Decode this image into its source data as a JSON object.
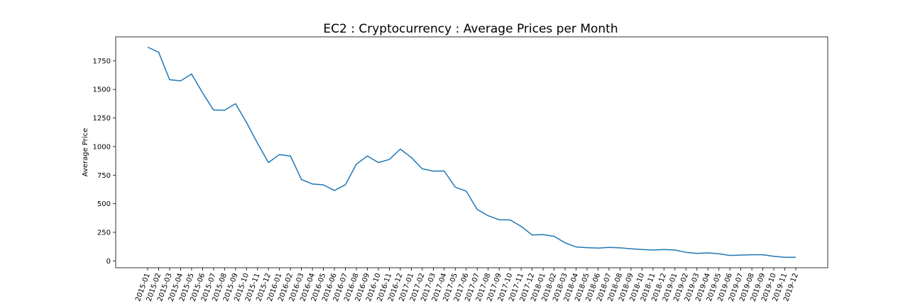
{
  "chart_data": {
    "type": "line",
    "title": "EC2 : Cryptocurrency : Average Prices per Month",
    "xlabel": "",
    "ylabel": "Average Price",
    "ylim": [
      -60,
      1960
    ],
    "yticks": [
      0,
      250,
      500,
      750,
      1000,
      1250,
      1500,
      1750
    ],
    "grid": false,
    "line_color": "#1f77b4",
    "categories": [
      "2015-01",
      "2015-02",
      "2015-03",
      "2015-04",
      "2015-05",
      "2015-06",
      "2015-07",
      "2015-08",
      "2015-09",
      "2015-10",
      "2015-11",
      "2015-12",
      "2016-01",
      "2016-02",
      "2016-03",
      "2016-04",
      "2016-05",
      "2016-06",
      "2016-07",
      "2016-08",
      "2016-09",
      "2016-10",
      "2016-11",
      "2016-12",
      "2017-01",
      "2017-02",
      "2017-03",
      "2017-04",
      "2017-05",
      "2017-06",
      "2017-07",
      "2017-08",
      "2017-09",
      "2017-10",
      "2017-11",
      "2017-12",
      "2018-01",
      "2018-02",
      "2018-03",
      "2018-04",
      "2018-05",
      "2018-06",
      "2018-07",
      "2018-08",
      "2018-09",
      "2018-10",
      "2018-11",
      "2018-12",
      "2019-01",
      "2019-02",
      "2019-03",
      "2019-04",
      "2019-05",
      "2019-06",
      "2019-07",
      "2019-08",
      "2019-09",
      "2019-10",
      "2019-11",
      "2019-12"
    ],
    "series": [
      {
        "values": [
          1870,
          1825,
          1585,
          1575,
          1635,
          1470,
          1320,
          1318,
          1375,
          1210,
          1030,
          860,
          930,
          918,
          712,
          673,
          665,
          616,
          666,
          845,
          918,
          860,
          887,
          978,
          905,
          805,
          786,
          786,
          645,
          610,
          450,
          395,
          360,
          358,
          302,
          227,
          230,
          215,
          158,
          122,
          116,
          112,
          118,
          114,
          106,
          100,
          95,
          99,
          95,
          75,
          66,
          70,
          62,
          48,
          51,
          54,
          54,
          40,
          32,
          32
        ]
      }
    ]
  }
}
